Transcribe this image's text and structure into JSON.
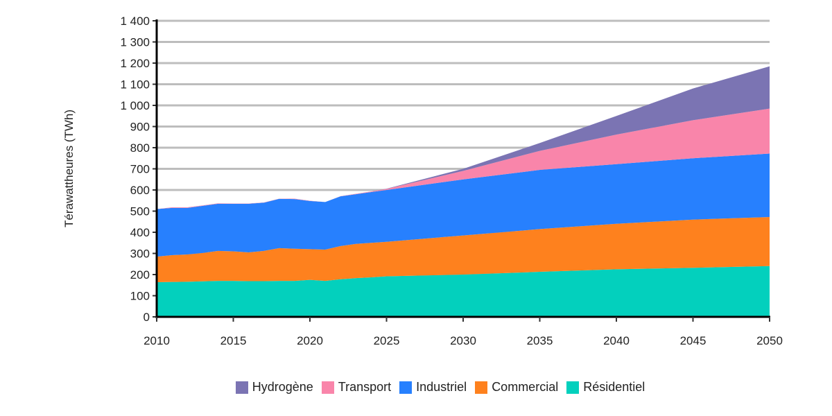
{
  "chart_data": {
    "type": "area",
    "stacked": true,
    "title": "",
    "xlabel": "",
    "ylabel": "Térawattheures (TWh)",
    "xlim": [
      2010,
      2050
    ],
    "ylim": [
      0,
      1400
    ],
    "x_ticks": [
      2010,
      2015,
      2020,
      2025,
      2030,
      2035,
      2040,
      2045,
      2050
    ],
    "y_ticks": [
      0,
      100,
      200,
      300,
      400,
      500,
      600,
      700,
      800,
      900,
      1000,
      1100,
      1200,
      1300,
      1400
    ],
    "y_tick_labels": [
      "0",
      "100",
      "200",
      "300",
      "400",
      "500",
      "600",
      "700",
      "800",
      "900",
      "1 000",
      "1 100",
      "1 200",
      "1 300",
      "1 400"
    ],
    "grid": true,
    "legend_position": "bottom",
    "x": [
      2010,
      2011,
      2012,
      2013,
      2014,
      2015,
      2016,
      2017,
      2018,
      2019,
      2020,
      2021,
      2022,
      2023,
      2024,
      2025,
      2030,
      2035,
      2040,
      2045,
      2050
    ],
    "series": [
      {
        "name": "Résidentiel",
        "color": "#03d0bd",
        "values": [
          164,
          165,
          166,
          168,
          170,
          170,
          169,
          169,
          170,
          170,
          175,
          170,
          178,
          183,
          187,
          192,
          200,
          213,
          225,
          232,
          240
        ]
      },
      {
        "name": "Commercial",
        "color": "#fe811e",
        "values": [
          121,
          127,
          129,
          134,
          142,
          140,
          136,
          143,
          155,
          152,
          145,
          148,
          157,
          162,
          163,
          163,
          185,
          202,
          215,
          228,
          232
        ]
      },
      {
        "name": "Industriel",
        "color": "#2780fe",
        "values": [
          225,
          223,
          220,
          223,
          223,
          225,
          230,
          228,
          233,
          235,
          228,
          225,
          235,
          235,
          240,
          245,
          265,
          280,
          282,
          290,
          300
        ]
      },
      {
        "name": "Transport",
        "color": "#f985aa",
        "values": [
          0,
          3,
          3,
          2,
          2,
          1,
          1,
          1,
          1,
          2,
          1,
          0,
          1,
          2,
          3,
          5,
          40,
          90,
          140,
          180,
          213
        ]
      },
      {
        "name": "Hydrogène",
        "color": "#7b74b3",
        "values": [
          0,
          0,
          0,
          0,
          0,
          0,
          0,
          0,
          0,
          0,
          0,
          0,
          0,
          0,
          0,
          1,
          10,
          37,
          88,
          150,
          200
        ]
      }
    ],
    "legend_order": [
      "Hydrogène",
      "Transport",
      "Industriel",
      "Commercial",
      "Résidentiel"
    ]
  }
}
